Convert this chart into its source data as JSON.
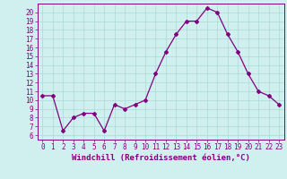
{
  "x": [
    0,
    1,
    2,
    3,
    4,
    5,
    6,
    7,
    8,
    9,
    10,
    11,
    12,
    13,
    14,
    15,
    16,
    17,
    18,
    19,
    20,
    21,
    22,
    23
  ],
  "y": [
    10.5,
    10.5,
    6.5,
    8.0,
    8.5,
    8.5,
    6.5,
    9.5,
    9.0,
    9.5,
    10.0,
    13.0,
    15.5,
    17.5,
    19.0,
    19.0,
    20.5,
    20.0,
    17.5,
    15.5,
    13.0,
    11.0,
    10.5,
    9.5
  ],
  "line_color": "#800080",
  "marker": "D",
  "marker_size": 2.0,
  "bg_color": "#d0f0f0",
  "grid_color": "#aed8d8",
  "xlabel": "Windchill (Refroidissement éolien,°C)",
  "xlim": [
    -0.5,
    23.5
  ],
  "ylim": [
    5.5,
    21.0
  ],
  "yticks": [
    6,
    7,
    8,
    9,
    10,
    11,
    12,
    13,
    14,
    15,
    16,
    17,
    18,
    19,
    20
  ],
  "xticks": [
    0,
    1,
    2,
    3,
    4,
    5,
    6,
    7,
    8,
    9,
    10,
    11,
    12,
    13,
    14,
    15,
    16,
    17,
    18,
    19,
    20,
    21,
    22,
    23
  ],
  "tick_color": "#800080",
  "tick_fontsize": 5.5,
  "xlabel_fontsize": 6.5,
  "spine_color": "#800080",
  "linewidth": 0.9
}
